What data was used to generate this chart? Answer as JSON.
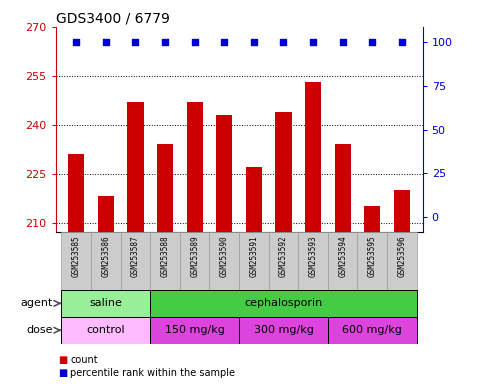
{
  "title": "GDS3400 / 6779",
  "samples": [
    "GSM253585",
    "GSM253586",
    "GSM253587",
    "GSM253588",
    "GSM253589",
    "GSM253590",
    "GSM253591",
    "GSM253592",
    "GSM253593",
    "GSM253594",
    "GSM253595",
    "GSM253596"
  ],
  "counts": [
    231,
    218,
    247,
    234,
    247,
    243,
    227,
    244,
    253,
    234,
    215,
    220
  ],
  "percentile_ranks": [
    100,
    100,
    100,
    100,
    100,
    100,
    100,
    100,
    100,
    100,
    100,
    100
  ],
  "ylim_left": [
    207,
    270
  ],
  "ylim_right": [
    -8.5,
    108.5
  ],
  "yticks_left": [
    210,
    225,
    240,
    255,
    270
  ],
  "yticks_right": [
    0,
    25,
    50,
    75,
    100
  ],
  "bar_color": "#cc0000",
  "dot_color": "#0000cc",
  "bar_width": 0.55,
  "agent_groups": [
    {
      "label": "saline",
      "start": 0,
      "end": 3,
      "color": "#99ee99"
    },
    {
      "label": "cephalosporin",
      "start": 3,
      "end": 12,
      "color": "#44cc44"
    }
  ],
  "dose_groups": [
    {
      "label": "control",
      "start": 0,
      "end": 3,
      "color": "#ffbbff"
    },
    {
      "label": "150 mg/kg",
      "start": 3,
      "end": 6,
      "color": "#dd44dd"
    },
    {
      "label": "300 mg/kg",
      "start": 6,
      "end": 9,
      "color": "#dd44dd"
    },
    {
      "label": "600 mg/kg",
      "start": 9,
      "end": 12,
      "color": "#dd44dd"
    }
  ],
  "tick_label_color_left": "#cc0000",
  "tick_label_color_right": "#0000cc",
  "sample_bg_color": "#cccccc",
  "sample_border_color": "#999999",
  "fig_width": 4.83,
  "fig_height": 3.84,
  "dpi": 100
}
